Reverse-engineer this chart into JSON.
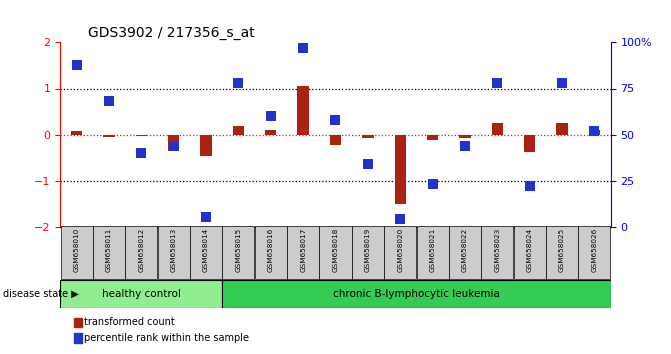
{
  "title": "GDS3902 / 217356_s_at",
  "samples": [
    "GSM658010",
    "GSM658011",
    "GSM658012",
    "GSM658013",
    "GSM658014",
    "GSM658015",
    "GSM658016",
    "GSM658017",
    "GSM658018",
    "GSM658019",
    "GSM658020",
    "GSM658021",
    "GSM658022",
    "GSM658023",
    "GSM658024",
    "GSM658025",
    "GSM658026"
  ],
  "transformed_count": [
    0.08,
    -0.05,
    -0.04,
    -0.35,
    -0.47,
    0.18,
    0.1,
    1.05,
    -0.22,
    -0.08,
    -1.52,
    -0.12,
    -0.08,
    0.25,
    -0.38,
    0.25,
    0.1
  ],
  "percentile_rank_pct": [
    88,
    68,
    40,
    44,
    5,
    78,
    60,
    97,
    58,
    34,
    4,
    23,
    44,
    78,
    22,
    78,
    52
  ],
  "healthy_control_count": 5,
  "disease_label_healthy": "healthy control",
  "disease_label_leukemia": "chronic B-lymphocytic leukemia",
  "disease_state_label": "disease state",
  "legend_red": "transformed count",
  "legend_blue": "percentile rank within the sample",
  "ylim_left": [
    -2,
    2
  ],
  "ylim_right": [
    0,
    100
  ],
  "yticks_left": [
    -2,
    -1,
    0,
    1,
    2
  ],
  "yticks_right": [
    0,
    25,
    50,
    75,
    100
  ],
  "bar_color_red": "#AA2211",
  "marker_color_blue": "#2233CC",
  "healthy_bg": "#90EE90",
  "leukemia_bg": "#33CC55",
  "sample_bg": "#CCCCCC",
  "dotted_line_y": [
    1,
    -1
  ],
  "zero_line_color": "#CC2222",
  "bar_width": 0.35,
  "marker_size": 55
}
